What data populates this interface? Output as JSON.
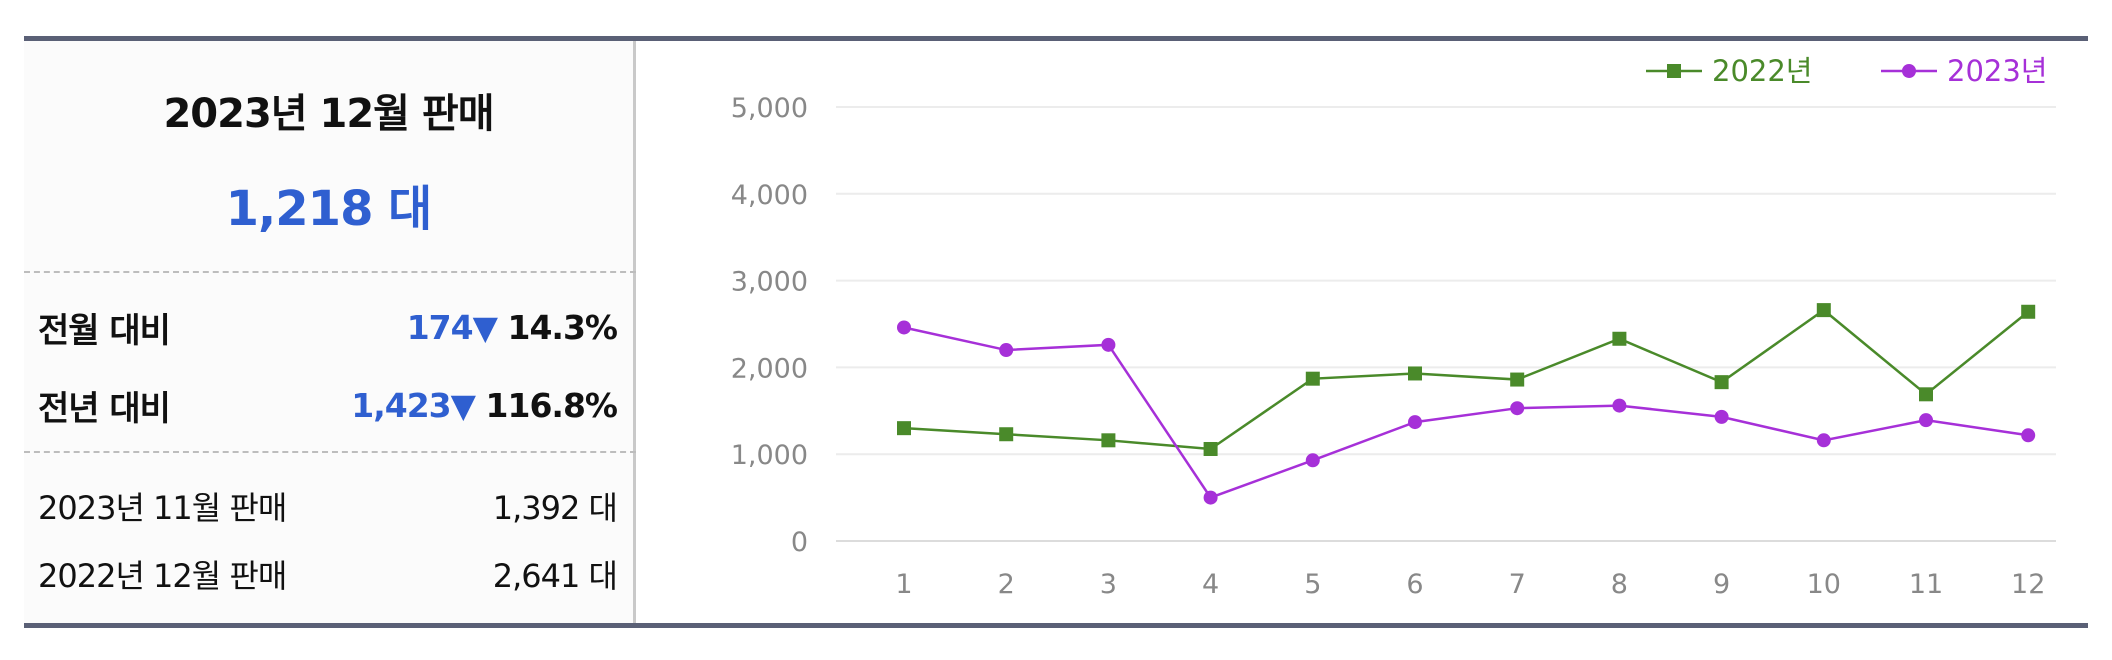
{
  "summary": {
    "title": "2023년 12월 판매",
    "total": "1,218 대",
    "mom": {
      "label": "전월 대비",
      "diff": "174",
      "arrow": "▼",
      "pct": "14.3%"
    },
    "yoy": {
      "label": "전년 대비",
      "diff": "1,423",
      "arrow": "▼",
      "pct": "116.8%"
    },
    "prev_month": {
      "label": "2023년 11월 판매",
      "value": "1,392 대"
    },
    "prev_year": {
      "label": "2022년 12월 판매",
      "value": "2,641 대"
    }
  },
  "chart_data": {
    "type": "line",
    "x": [
      "1",
      "2",
      "3",
      "4",
      "5",
      "6",
      "7",
      "8",
      "9",
      "10",
      "11",
      "12"
    ],
    "ylim": [
      0,
      5000
    ],
    "yticks": [
      "0",
      "1,000",
      "2,000",
      "3,000",
      "4,000",
      "5,000"
    ],
    "grid": true,
    "legend": "top-right",
    "series": [
      {
        "name": "2022년",
        "color": "#4a8a2a",
        "marker": "square",
        "values": [
          1300,
          1230,
          1160,
          1060,
          1870,
          1930,
          1860,
          2330,
          1830,
          2660,
          1690,
          2641
        ]
      },
      {
        "name": "2023년",
        "color": "#a630d8",
        "marker": "circle",
        "values": [
          2460,
          2200,
          2260,
          500,
          930,
          1370,
          1530,
          1560,
          1430,
          1160,
          1392,
          1218
        ]
      }
    ]
  },
  "colors": {
    "accent_blue": "#2f5fd0",
    "border": "#5a6076"
  }
}
